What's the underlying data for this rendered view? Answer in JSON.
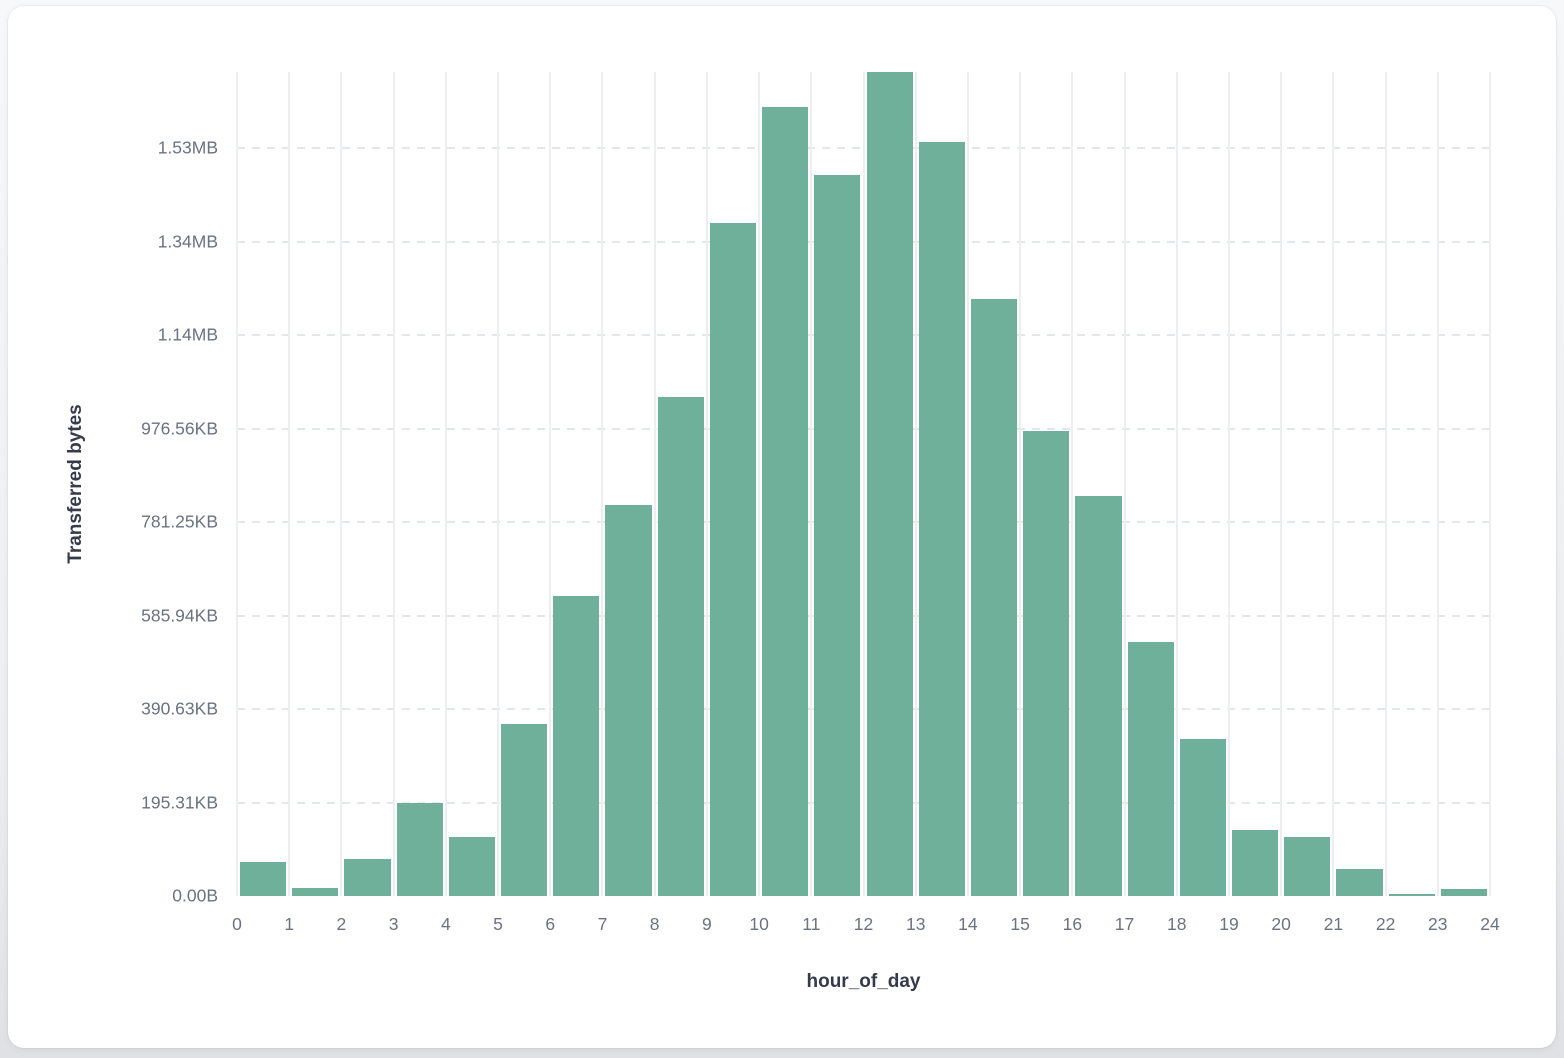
{
  "card": {
    "background": "#ffffff"
  },
  "chart": {
    "colors": {
      "bar": "#6fb09b",
      "grid_vertical": "#eceef2",
      "grid_horizontal": "#e3e6eb",
      "tick_label": "#6b7280",
      "axis_title": "#353b4a"
    }
  },
  "chart_data": {
    "type": "bar",
    "title": "",
    "xlabel": "hour_of_day",
    "ylabel": "Transferred bytes",
    "grid": true,
    "legend": false,
    "x_bin_edges": [
      0,
      1,
      2,
      3,
      4,
      5,
      6,
      7,
      8,
      9,
      10,
      11,
      12,
      13,
      14,
      15,
      16,
      17,
      18,
      19,
      20,
      21,
      22,
      23,
      24
    ],
    "values_bytes": [
      72700,
      17100,
      79100,
      198900,
      126200,
      367900,
      642300,
      836400,
      1068000,
      1441000,
      1688300,
      1542200,
      1763200,
      1612800,
      1278500,
      996100,
      856200,
      544000,
      335800,
      141200,
      126200,
      58400,
      4300,
      14300
    ],
    "ylim_bytes": [
      0,
      1763200
    ],
    "y_ticks": [
      {
        "label": "0.00B",
        "bytes": 0
      },
      {
        "label": "195.31KB",
        "bytes": 200000
      },
      {
        "label": "390.63KB",
        "bytes": 400000
      },
      {
        "label": "585.94KB",
        "bytes": 600000
      },
      {
        "label": "781.25KB",
        "bytes": 800000
      },
      {
        "label": "976.56KB",
        "bytes": 1000000
      },
      {
        "label": "1.14MB",
        "bytes": 1200000
      },
      {
        "label": "1.34MB",
        "bytes": 1400000
      },
      {
        "label": "1.53MB",
        "bytes": 1600000
      }
    ],
    "x_ticks": [
      "0",
      "1",
      "2",
      "3",
      "4",
      "5",
      "6",
      "7",
      "8",
      "9",
      "10",
      "11",
      "12",
      "13",
      "14",
      "15",
      "16",
      "17",
      "18",
      "19",
      "20",
      "21",
      "22",
      "23",
      "24"
    ]
  }
}
